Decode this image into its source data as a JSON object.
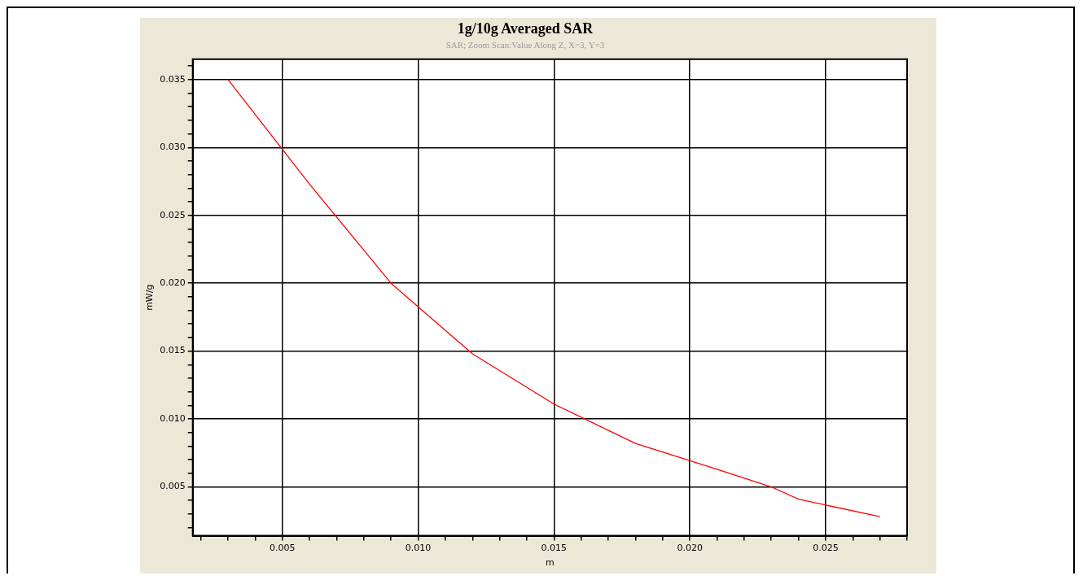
{
  "chart_data": {
    "type": "line",
    "title": "1g/10g Averaged SAR",
    "subtitle": "SAR; Zoom Scan:Value Along Z, X=3, Y=3",
    "xlabel": "m",
    "ylabel": "mW/g",
    "x": [
      0.003,
      0.006,
      0.009,
      0.012,
      0.015,
      0.018,
      0.021,
      0.023,
      0.024,
      0.027
    ],
    "series": [
      {
        "color": "#ff0000",
        "values": [
          0.035,
          0.0273,
          0.02,
          0.0148,
          0.0111,
          0.0082,
          0.0063,
          0.005,
          0.0041,
          0.0028
        ]
      }
    ],
    "xlim": [
      0.0017,
      0.028
    ],
    "ylim": [
      0.0014,
      0.0365
    ],
    "xticks": [
      {
        "value": 0.002,
        "label": null
      },
      {
        "value": 0.003,
        "label": null
      },
      {
        "value": 0.004,
        "label": null
      },
      {
        "value": 0.005,
        "label": "0.005"
      },
      {
        "value": 0.006,
        "label": null
      },
      {
        "value": 0.007,
        "label": null
      },
      {
        "value": 0.008,
        "label": null
      },
      {
        "value": 0.009,
        "label": null
      },
      {
        "value": 0.01,
        "label": "0.010"
      },
      {
        "value": 0.011,
        "label": null
      },
      {
        "value": 0.012,
        "label": null
      },
      {
        "value": 0.013,
        "label": null
      },
      {
        "value": 0.014,
        "label": null
      },
      {
        "value": 0.015,
        "label": "0.015"
      },
      {
        "value": 0.016,
        "label": null
      },
      {
        "value": 0.017,
        "label": null
      },
      {
        "value": 0.018,
        "label": null
      },
      {
        "value": 0.019,
        "label": null
      },
      {
        "value": 0.02,
        "label": "0.020"
      },
      {
        "value": 0.021,
        "label": null
      },
      {
        "value": 0.022,
        "label": null
      },
      {
        "value": 0.023,
        "label": null
      },
      {
        "value": 0.024,
        "label": null
      },
      {
        "value": 0.025,
        "label": "0.025"
      },
      {
        "value": 0.026,
        "label": null
      },
      {
        "value": 0.027,
        "label": null
      },
      {
        "value": 0.028,
        "label": null
      }
    ],
    "yticks": [
      {
        "value": 0.002,
        "label": null
      },
      {
        "value": 0.003,
        "label": null
      },
      {
        "value": 0.004,
        "label": null
      },
      {
        "value": 0.005,
        "label": "0.005"
      },
      {
        "value": 0.006,
        "label": null
      },
      {
        "value": 0.007,
        "label": null
      },
      {
        "value": 0.008,
        "label": null
      },
      {
        "value": 0.009,
        "label": null
      },
      {
        "value": 0.01,
        "label": "0.010"
      },
      {
        "value": 0.011,
        "label": null
      },
      {
        "value": 0.012,
        "label": null
      },
      {
        "value": 0.013,
        "label": null
      },
      {
        "value": 0.014,
        "label": null
      },
      {
        "value": 0.015,
        "label": "0.015"
      },
      {
        "value": 0.016,
        "label": null
      },
      {
        "value": 0.017,
        "label": null
      },
      {
        "value": 0.018,
        "label": null
      },
      {
        "value": 0.019,
        "label": null
      },
      {
        "value": 0.02,
        "label": "0.020"
      },
      {
        "value": 0.021,
        "label": null
      },
      {
        "value": 0.022,
        "label": null
      },
      {
        "value": 0.023,
        "label": null
      },
      {
        "value": 0.024,
        "label": null
      },
      {
        "value": 0.025,
        "label": "0.025"
      },
      {
        "value": 0.026,
        "label": null
      },
      {
        "value": 0.027,
        "label": null
      },
      {
        "value": 0.028,
        "label": null
      },
      {
        "value": 0.029,
        "label": null
      },
      {
        "value": 0.03,
        "label": "0.030"
      },
      {
        "value": 0.031,
        "label": null
      },
      {
        "value": 0.032,
        "label": null
      },
      {
        "value": 0.033,
        "label": null
      },
      {
        "value": 0.034,
        "label": null
      },
      {
        "value": 0.035,
        "label": "0.035"
      },
      {
        "value": 0.036,
        "label": null
      }
    ],
    "grid": true,
    "legend": false,
    "marker": "none",
    "line_style": "solid"
  }
}
